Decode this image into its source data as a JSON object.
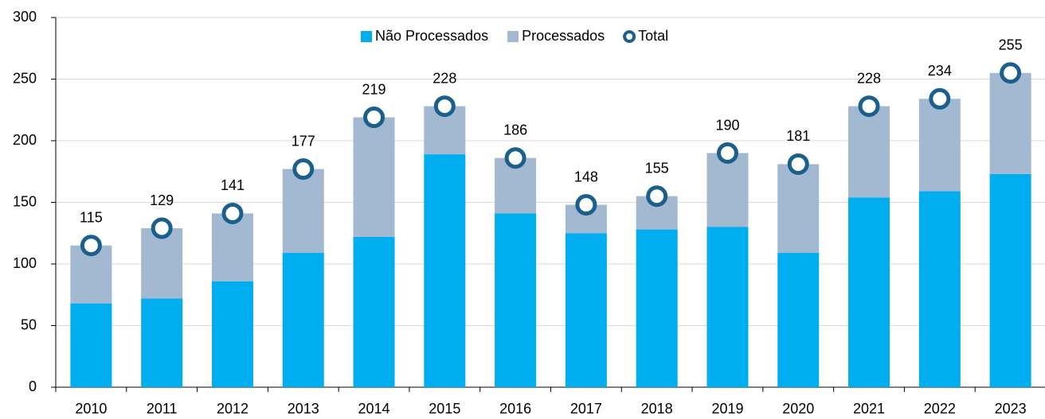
{
  "chart_data": {
    "type": "bar",
    "stacked": true,
    "categories": [
      "2010",
      "2011",
      "2012",
      "2013",
      "2014",
      "2015",
      "2016",
      "2017",
      "2018",
      "2019",
      "2020",
      "2021",
      "2022",
      "2023"
    ],
    "series": [
      {
        "name": "Não Processados",
        "color": "#00aeef",
        "values": [
          68,
          72,
          86,
          109,
          122,
          189,
          141,
          125,
          128,
          130,
          109,
          154,
          159,
          173
        ]
      },
      {
        "name": "Processados",
        "color": "#a2b9d1",
        "values": [
          47,
          57,
          55,
          68,
          97,
          39,
          45,
          23,
          27,
          60,
          72,
          74,
          75,
          82
        ]
      },
      {
        "name": "Total",
        "color": "#1b5f8c",
        "marker": "circle",
        "values": [
          115,
          129,
          141,
          177,
          219,
          228,
          186,
          148,
          155,
          190,
          181,
          228,
          234,
          255
        ]
      }
    ],
    "ylim": [
      0,
      300
    ],
    "yticks": [
      0,
      50,
      100,
      150,
      200,
      250,
      300
    ],
    "grid": true
  }
}
